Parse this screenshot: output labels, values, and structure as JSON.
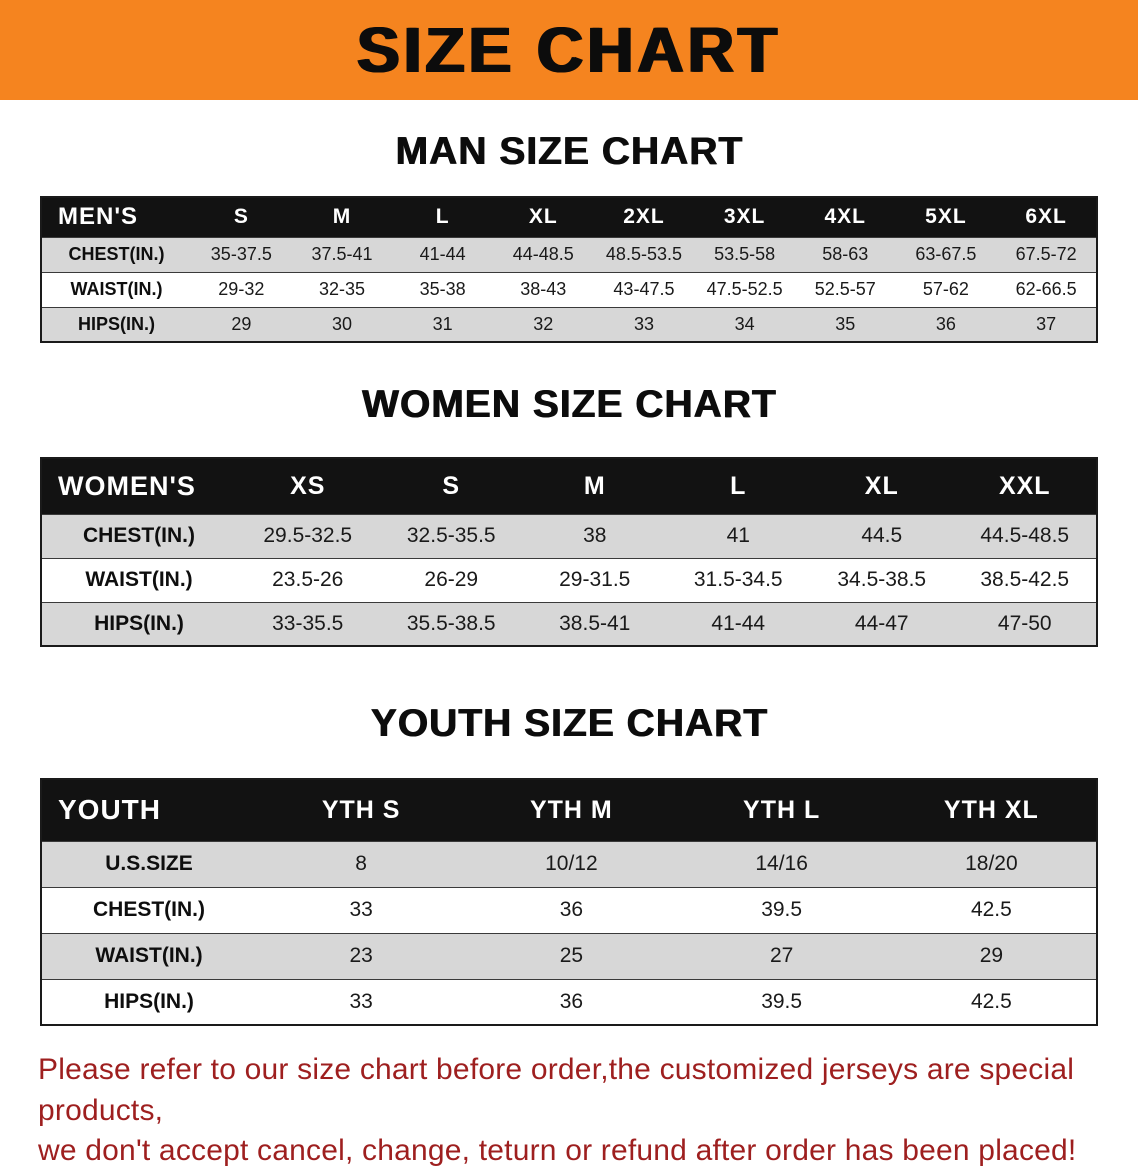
{
  "theme": {
    "banner_orange": "#f5841f",
    "header_black": "#121212",
    "stripe_gray": "#d7d7d7",
    "disclaimer_red": "#9e1f1f",
    "page_background": "#ffffff"
  },
  "banner": {
    "title": "SIZE CHART"
  },
  "sections": [
    {
      "heading": "MAN SIZE CHART",
      "table": {
        "header_label": "MEN'S",
        "columns": [
          "S",
          "M",
          "L",
          "XL",
          "2XL",
          "3XL",
          "4XL",
          "5XL",
          "6XL"
        ],
        "rows": [
          {
            "label": "CHEST(IN.)",
            "values": [
              "35-37.5",
              "37.5-41",
              "41-44",
              "44-48.5",
              "48.5-53.5",
              "53.5-58",
              "58-63",
              "63-67.5",
              "67.5-72"
            ]
          },
          {
            "label": "WAIST(IN.)",
            "values": [
              "29-32",
              "32-35",
              "35-38",
              "38-43",
              "43-47.5",
              "47.5-52.5",
              "52.5-57",
              "57-62",
              "62-66.5"
            ]
          },
          {
            "label": "HIPS(IN.)",
            "values": [
              "29",
              "30",
              "31",
              "32",
              "33",
              "34",
              "35",
              "36",
              "37"
            ]
          }
        ]
      }
    },
    {
      "heading": "WOMEN SIZE CHART",
      "table": {
        "header_label": "WOMEN'S",
        "columns": [
          "XS",
          "S",
          "M",
          "L",
          "XL",
          "XXL"
        ],
        "rows": [
          {
            "label": "CHEST(IN.)",
            "values": [
              "29.5-32.5",
              "32.5-35.5",
              "38",
              "41",
              "44.5",
              "44.5-48.5"
            ]
          },
          {
            "label": "WAIST(IN.)",
            "values": [
              "23.5-26",
              "26-29",
              "29-31.5",
              "31.5-34.5",
              "34.5-38.5",
              "38.5-42.5"
            ]
          },
          {
            "label": "HIPS(IN.)",
            "values": [
              "33-35.5",
              "35.5-38.5",
              "38.5-41",
              "41-44",
              "44-47",
              "47-50"
            ]
          }
        ]
      }
    },
    {
      "heading": "YOUTH SIZE CHART",
      "table": {
        "header_label": "YOUTH",
        "columns": [
          "YTH S",
          "YTH M",
          "YTH L",
          "YTH XL"
        ],
        "rows": [
          {
            "label": "U.S.SIZE",
            "values": [
              "8",
              "10/12",
              "14/16",
              "18/20"
            ]
          },
          {
            "label": "CHEST(IN.)",
            "values": [
              "33",
              "36",
              "39.5",
              "42.5"
            ]
          },
          {
            "label": "WAIST(IN.)",
            "values": [
              "23",
              "25",
              "27",
              "29"
            ]
          },
          {
            "label": "HIPS(IN.)",
            "values": [
              "33",
              "36",
              "39.5",
              "42.5"
            ]
          }
        ]
      }
    }
  ],
  "disclaimer": {
    "line1": "Please refer to our size chart before order,the customized jerseys are special products,",
    "line2": "we don't accept cancel, change, teturn or refund after order has been placed!"
  }
}
